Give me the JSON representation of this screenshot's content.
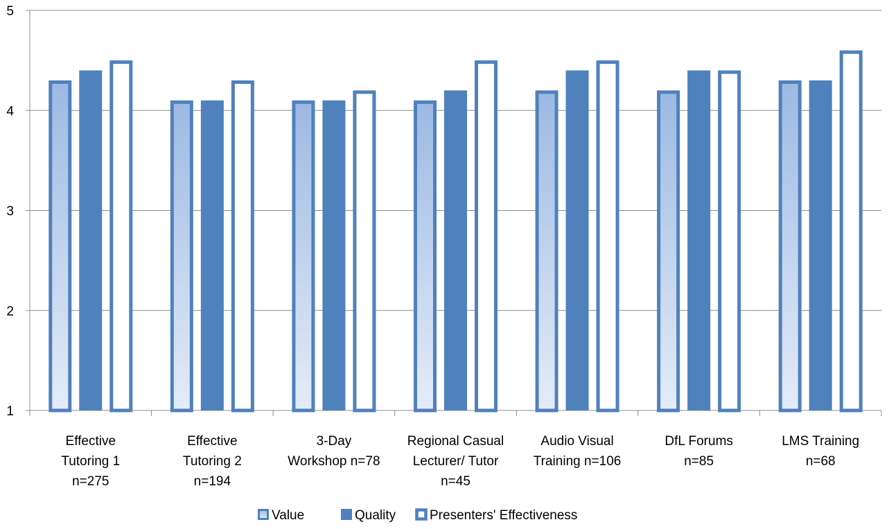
{
  "chart_data": {
    "type": "bar",
    "categories": [
      [
        "Effective",
        "Tutoring 1",
        "n=275"
      ],
      [
        "Effective",
        "Tutoring 2",
        "n=194"
      ],
      [
        "3-Day",
        "Workshop n=78"
      ],
      [
        "Regional Casual",
        "Lecturer/ Tutor",
        "n=45"
      ],
      [
        "Audio Visual",
        "Training n=106"
      ],
      [
        "DfL Forums",
        "n=85"
      ],
      [
        "LMS Training",
        "n=68"
      ]
    ],
    "series": [
      {
        "name": "Value",
        "values": [
          4.3,
          4.1,
          4.1,
          4.1,
          4.2,
          4.2,
          4.3
        ],
        "fill": "gradient",
        "color": "#4f81bd",
        "gradient_top": "#9db9e3",
        "gradient_bottom": "#e4ecf8"
      },
      {
        "name": "Quality",
        "values": [
          4.4,
          4.1,
          4.1,
          4.2,
          4.4,
          4.4,
          4.3
        ],
        "fill": "solid",
        "color": "#4f81bd"
      },
      {
        "name": "Presenters' Effectiveness",
        "values": [
          4.5,
          4.3,
          4.2,
          4.5,
          4.5,
          4.4,
          4.6
        ],
        "fill": "outline",
        "color": "#4f81bd",
        "inner": "#ffffff"
      }
    ],
    "ylim": [
      1,
      5
    ],
    "yticks": [
      "1",
      "2",
      "3",
      "4",
      "5"
    ],
    "grid": true,
    "legend_position": "bottom"
  }
}
